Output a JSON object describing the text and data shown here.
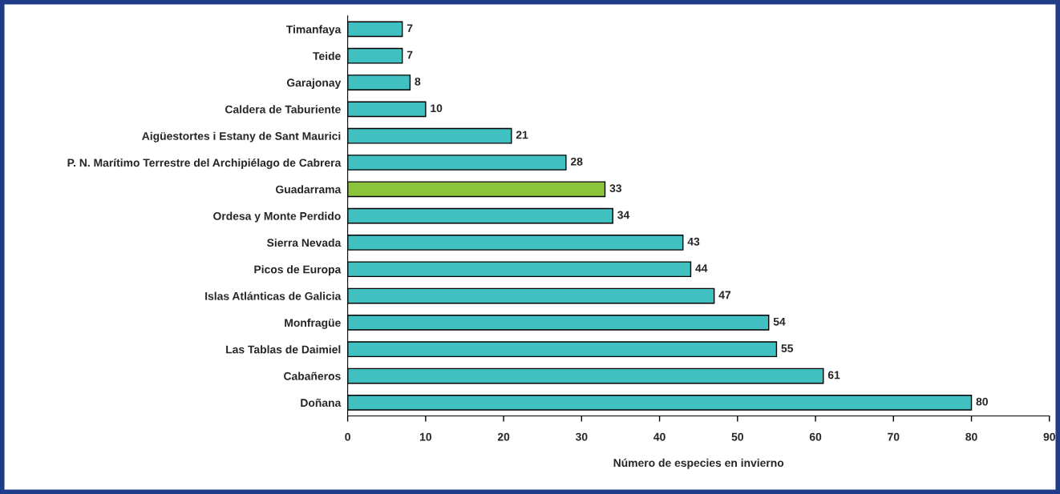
{
  "chart_data": {
    "type": "bar",
    "orientation": "horizontal",
    "xlabel": "Número de especies en invierno",
    "categories": [
      "Timanfaya",
      "Teide",
      "Garajonay",
      "Caldera de Taburiente",
      "Aigüestortes i Estany de Sant Maurici",
      "P. N. Marítimo Terrestre del Archipiélago de Cabrera",
      "Guadarrama",
      "Ordesa y Monte Perdido",
      "Sierra Nevada",
      "Picos de Europa",
      "Islas Atlánticas de Galicia",
      "Monfragüe",
      "Las Tablas de Daimiel",
      "Cabañeros",
      "Doñana"
    ],
    "values": [
      7,
      7,
      8,
      10,
      21,
      28,
      33,
      34,
      43,
      44,
      47,
      54,
      55,
      61,
      80
    ],
    "colors": [
      "#40c0c0",
      "#40c0c0",
      "#40c0c0",
      "#40c0c0",
      "#40c0c0",
      "#40c0c0",
      "#8cc43c",
      "#40c0c0",
      "#40c0c0",
      "#40c0c0",
      "#40c0c0",
      "#40c0c0",
      "#40c0c0",
      "#40c0c0",
      "#40c0c0"
    ],
    "xlim": [
      0,
      90
    ],
    "xticks": [
      0,
      10,
      20,
      30,
      40,
      50,
      60,
      70,
      80,
      90
    ],
    "data_labels": true,
    "grid": false,
    "legend": false
  }
}
